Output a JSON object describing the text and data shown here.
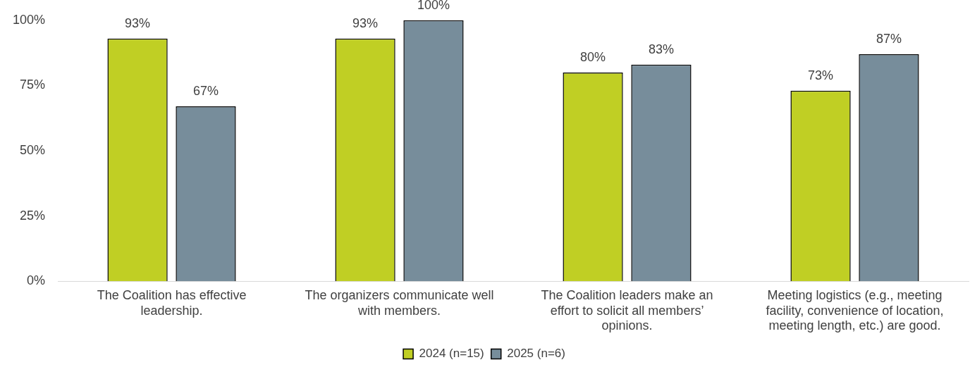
{
  "chart_data": {
    "type": "bar",
    "categories": [
      "The Coalition has effective leadership.",
      "The organizers communicate well with members.",
      "The Coalition leaders make an effort to solicit all members’ opinions.",
      "Meeting logistics (e.g., meeting facility, convenience of location, meeting length, etc.) are good."
    ],
    "series": [
      {
        "name": "2024 (n=15)",
        "color": "#c0cf24",
        "values": [
          93,
          93,
          80,
          73
        ],
        "value_labels": [
          "93%",
          "93%",
          "80%",
          "73%"
        ]
      },
      {
        "name": "2025 (n=6)",
        "color": "#778d9b",
        "values": [
          67,
          100,
          83,
          87
        ],
        "value_labels": [
          "67%",
          "100%",
          "83%",
          "87%"
        ]
      }
    ],
    "ylim": [
      0,
      100
    ],
    "yticks": [
      {
        "value": 0,
        "label": "0%"
      },
      {
        "value": 25,
        "label": "25%"
      },
      {
        "value": 50,
        "label": "50%"
      },
      {
        "value": 75,
        "label": "75%"
      },
      {
        "value": 100,
        "label": "100%"
      }
    ],
    "grid": false,
    "legend": "bottom"
  }
}
